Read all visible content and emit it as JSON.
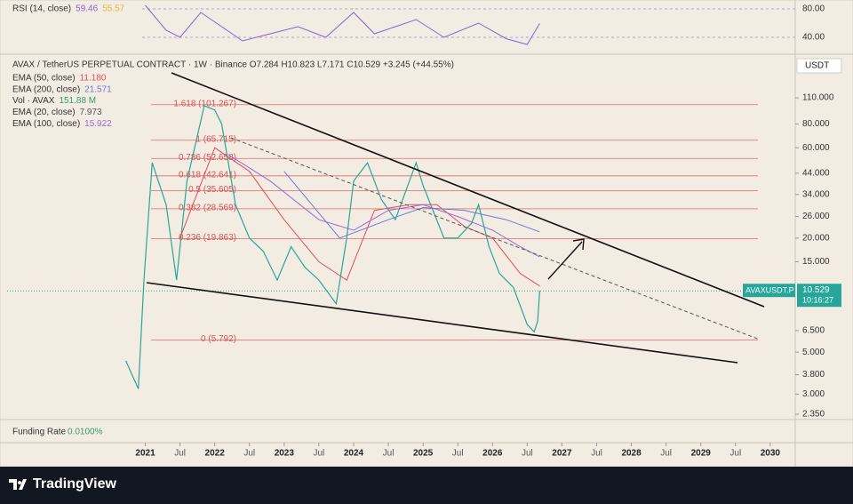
{
  "chart_data": {
    "type": "line",
    "log_scale": true,
    "grid": false,
    "xlim": [
      2019.01,
      2030.36
    ],
    "xticks": [
      2021,
      {
        "value": 2021.5,
        "label": "Jul"
      },
      2022,
      {
        "value": 2022.5,
        "label": "Jul"
      },
      2023,
      {
        "value": 2023.5,
        "label": "Jul"
      },
      2024,
      {
        "value": 2024.5,
        "label": "Jul"
      },
      2025,
      {
        "value": 2025.5,
        "label": "Jul"
      },
      2026,
      {
        "value": 2026.5,
        "label": "Jul"
      },
      2027,
      {
        "value": 2027.5,
        "label": "Jul"
      },
      2028,
      {
        "value": 2028.5,
        "label": "Jul"
      },
      2029,
      {
        "value": 2029.5,
        "label": "Jul"
      },
      2030
    ],
    "ylim": [
      2.25,
      185
    ],
    "yticks": [
      {
        "value": 110,
        "label": "110.000"
      },
      {
        "value": 80,
        "label": "80.000"
      },
      {
        "value": 60,
        "label": "60.000"
      },
      {
        "value": 44,
        "label": "44.000"
      },
      {
        "value": 34,
        "label": "34.000"
      },
      {
        "value": 26,
        "label": "26.000"
      },
      {
        "value": 20,
        "label": "20.000"
      },
      {
        "value": 15,
        "label": "15.000"
      },
      {
        "value": 6.5,
        "label": "6.500"
      },
      {
        "value": 5,
        "label": "5.000"
      },
      {
        "value": 3.8,
        "label": "3.800"
      },
      {
        "value": 3,
        "label": "3.000"
      },
      {
        "value": 2.35,
        "label": "2.350"
      }
    ],
    "currency": "USDT",
    "symbol_title": "AVAX / TetherUS PERPETUAL CONTRACT · 1W · Binance  O7.284  H10.823  L7.171  C10.529  +3.245 (+44.55%)",
    "series": [
      {
        "name": "AVAXUSDT.P",
        "color": "#26a69a",
        "width": 1.2,
        "x": [
          2020.72,
          2020.9,
          2020.98,
          2021.1,
          2021.3,
          2021.45,
          2021.6,
          2021.85,
          2022.0,
          2022.1,
          2022.3,
          2022.5,
          2022.7,
          2022.9,
          2023.1,
          2023.3,
          2023.5,
          2023.75,
          2023.9,
          2024.0,
          2024.2,
          2024.4,
          2024.6,
          2024.9,
          2025.0,
          2025.3,
          2025.5,
          2025.7,
          2025.8,
          2025.95,
          2026.1,
          2026.3,
          2026.5,
          2026.6,
          2026.65,
          2026.68
        ],
        "values": [
          4.5,
          3.2,
          12,
          50,
          30,
          12,
          40,
          100,
          95,
          80,
          30,
          20,
          17,
          12,
          18,
          14,
          12,
          9,
          20,
          40,
          50,
          32,
          25,
          50,
          38,
          20,
          20,
          24,
          30,
          18,
          13,
          11,
          7,
          6.4,
          7.284,
          10.529
        ]
      },
      {
        "name": "EMA (50, close)",
        "color": "#e0505a",
        "width": 1,
        "last_label": "11.180",
        "x": [
          2021.5,
          2022.0,
          2022.5,
          2023.0,
          2023.5,
          2023.9,
          2024.3,
          2024.8,
          2025.2,
          2025.6,
          2026.0,
          2026.4,
          2026.68
        ],
        "values": [
          20,
          60,
          45,
          25,
          15,
          12,
          28,
          30,
          30,
          23,
          20,
          13,
          11.18
        ]
      },
      {
        "name": "EMA (200, close)",
        "color": "#6c7bd6",
        "width": 1,
        "last_label": "21.571",
        "x": [
          2023.0,
          2023.8,
          2024.5,
          2025.0,
          2025.6,
          2026.2,
          2026.68
        ],
        "values": [
          45,
          20,
          25,
          29,
          28,
          25,
          21.571
        ]
      },
      {
        "name": "Vol · AVAX",
        "color": "#2e9e6e",
        "last_label": "151.88 M",
        "x": [],
        "values": []
      },
      {
        "name": "EMA (20, close)",
        "color": "#555555",
        "last_label": "7.973",
        "x": [],
        "values": []
      },
      {
        "name": "EMA (100, close)",
        "color": "#9c6ad6",
        "width": 1,
        "last_label": "15.922",
        "x": [
          2022.2,
          2022.8,
          2023.5,
          2024.0,
          2024.5,
          2025.0,
          2025.5,
          2026.0,
          2026.4,
          2026.68
        ],
        "values": [
          55,
          40,
          25,
          22,
          28,
          30,
          26,
          22,
          18,
          15.922
        ]
      }
    ],
    "fib_levels": [
      {
        "value": 101.267,
        "label": "1.618 (101.267)"
      },
      {
        "value": 65.715,
        "label": "1 (65.715)"
      },
      {
        "value": 52.658,
        "label": "0.786 (52.658)"
      },
      {
        "value": 42.641,
        "label": "0.618 (42.641)"
      },
      {
        "value": 35.605,
        "label": "0.5 (35.605)"
      },
      {
        "value": 28.569,
        "label": "0.382 (28.569)"
      },
      {
        "value": 19.863,
        "label": "0.236 (19.863)"
      },
      {
        "value": 5.792,
        "label": "0 (5.792)"
      }
    ],
    "price_tag": {
      "symbol": "AVAXUSDT.P",
      "value": 10.529,
      "value_label": "10.529",
      "countdown": "10:16:27"
    },
    "rsi": {
      "label": "RSI (14, close)",
      "color": "#8a63d2",
      "signal_label": "55.57",
      "ylim": [
        20,
        90
      ],
      "yticks": [
        {
          "value": 80,
          "label": "80.00"
        },
        {
          "value": 40,
          "label": "40.00"
        }
      ],
      "x": [
        2021.0,
        2021.3,
        2021.5,
        2021.8,
        2022.1,
        2022.4,
        2022.8,
        2023.2,
        2023.6,
        2024.0,
        2024.3,
        2024.9,
        2025.3,
        2025.8,
        2026.2,
        2026.5,
        2026.68
      ],
      "values": [
        85,
        50,
        40,
        75,
        55,
        35,
        45,
        55,
        40,
        75,
        45,
        65,
        40,
        60,
        38,
        30,
        59.46
      ]
    },
    "funding": {
      "label": "Funding Rate",
      "value": "0.0100%"
    },
    "brand": "TradingView"
  }
}
